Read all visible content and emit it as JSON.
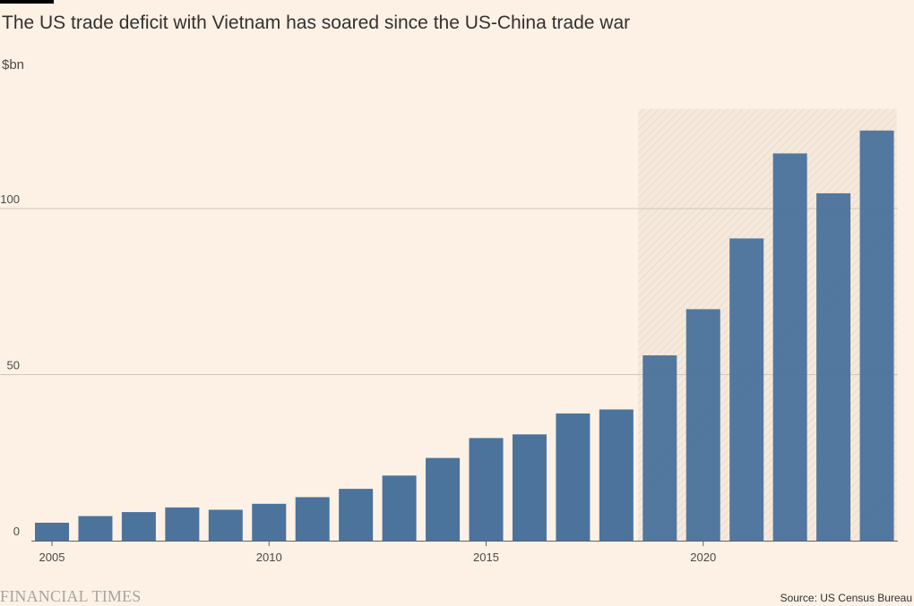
{
  "title": "The US trade deficit with Vietnam has soared since the US-China trade war",
  "unit_label": "$bn",
  "source": "Source: US Census Bureau",
  "logo_text": "FINANCIAL TIMES",
  "colors": {
    "background": "#fdf1e6",
    "bar": "#4b739c",
    "gridline": "#cec6bc",
    "axis": "#66605c"
  },
  "chart_data": {
    "type": "bar",
    "x": [
      2005,
      2006,
      2007,
      2008,
      2009,
      2010,
      2011,
      2012,
      2013,
      2014,
      2015,
      2016,
      2017,
      2018,
      2019,
      2020,
      2021,
      2022,
      2023,
      2024
    ],
    "values": [
      5.4,
      7.4,
      8.6,
      10.0,
      9.3,
      11.1,
      13.1,
      15.6,
      19.6,
      24.9,
      30.9,
      32.0,
      38.3,
      39.5,
      55.8,
      69.7,
      91.0,
      116.6,
      104.6,
      123.5
    ],
    "y_ticks": [
      0,
      50,
      100
    ],
    "x_ticks": [
      2005,
      2010,
      2015,
      2020
    ],
    "ylim": [
      0,
      130
    ],
    "highlight_range": [
      2019,
      2024
    ],
    "grid": true
  }
}
